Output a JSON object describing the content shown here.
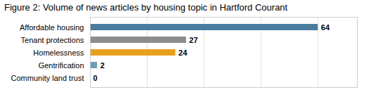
{
  "chart_data": {
    "type": "bar",
    "orientation": "horizontal",
    "title": "Figure 2: Volume of news articles by housing topic in Hartford Courant",
    "categories": [
      "Affordable housing",
      "Tenant protections",
      "Homelessness",
      "Gentrification",
      "Community land trust"
    ],
    "values": [
      64,
      27,
      24,
      2,
      0
    ],
    "colors": [
      "#4a7c9e",
      "#8c8c8c",
      "#e8a020",
      "#6a9db8",
      "#8c8c8c"
    ],
    "xlim": [
      0,
      75
    ],
    "xticks": [
      0,
      16,
      32,
      48,
      64
    ],
    "grid": true,
    "data_labels": true,
    "tick_labels": "y"
  }
}
